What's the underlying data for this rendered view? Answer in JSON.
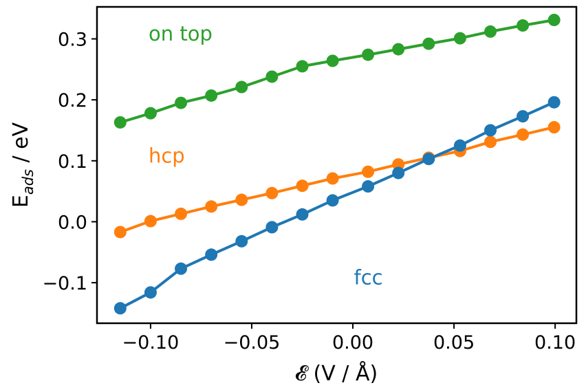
{
  "chart_data": {
    "type": "line",
    "title": "",
    "xlabel": "𝓔 (V / Å)",
    "ylabel_main": "E",
    "ylabel_sub": "ads",
    "ylabel_rest": " / eV",
    "xlim": [
      -0.1265,
      0.1105
    ],
    "ylim": [
      -0.1665,
      0.3525
    ],
    "x_ticks": [
      -0.1,
      -0.05,
      0.0,
      0.05,
      0.1
    ],
    "x_tick_labels": [
      "−0.10",
      "−0.05",
      "0.00",
      "0.05",
      "0.10"
    ],
    "y_ticks": [
      -0.1,
      0.0,
      0.1,
      0.2,
      0.3
    ],
    "y_tick_labels": [
      "−0.1",
      "0.0",
      "0.1",
      "0.2",
      "0.3"
    ],
    "x": [
      -0.115,
      -0.1,
      -0.085,
      -0.07,
      -0.055,
      -0.04,
      -0.025,
      -0.01,
      0.0075,
      0.0225,
      0.0375,
      0.053,
      0.068,
      0.084,
      0.0995
    ],
    "series": [
      {
        "name": "on top",
        "color": "#2ca02c",
        "values": [
          0.163,
          0.178,
          0.195,
          0.207,
          0.221,
          0.238,
          0.255,
          0.264,
          0.274,
          0.283,
          0.292,
          0.301,
          0.312,
          0.322,
          0.331
        ]
      },
      {
        "name": "hcp",
        "color": "#ff7f0e",
        "values": [
          -0.017,
          0.001,
          0.013,
          0.025,
          0.036,
          0.047,
          0.059,
          0.071,
          0.082,
          0.094,
          0.105,
          0.116,
          0.131,
          0.143,
          0.155
        ]
      },
      {
        "name": "fcc",
        "color": "#1f77b4",
        "values": [
          -0.142,
          -0.116,
          -0.077,
          -0.054,
          -0.032,
          -0.009,
          0.012,
          0.035,
          0.058,
          0.08,
          0.103,
          0.125,
          0.15,
          0.173,
          0.196
        ]
      }
    ],
    "annotations": [
      {
        "text": "on top",
        "color": "#2ca02c",
        "x": -0.101,
        "y": 0.297
      },
      {
        "text": "hcp",
        "color": "#ff7f0e",
        "x": -0.101,
        "y": 0.097
      },
      {
        "text": "fcc",
        "color": "#1f77b4",
        "x": 0.0005,
        "y": -0.103
      }
    ]
  }
}
